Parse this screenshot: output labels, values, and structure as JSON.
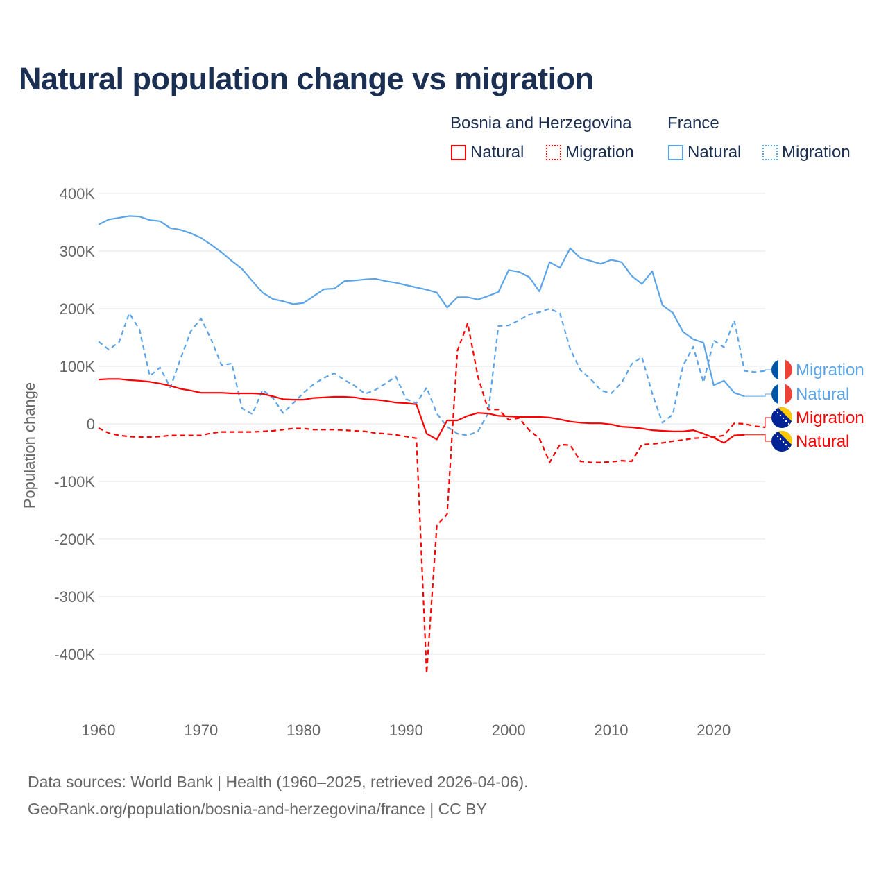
{
  "title": "Natural population change vs migration",
  "legend": {
    "groups": [
      {
        "name": "Bosnia and Herzegovina",
        "items": [
          "Natural",
          "Migration"
        ],
        "color": "#ff0000"
      },
      {
        "name": "France",
        "items": [
          "Natural",
          "Migration"
        ],
        "color": "#5ca4e8"
      }
    ]
  },
  "footer": {
    "line1": "Data sources: World Bank | Health (1960–2025, retrieved 2026-04-06).",
    "line2": "GeoRank.org/population/bosnia-and-herzegovina/france | CC BY"
  },
  "chart_data": {
    "type": "line",
    "title": "Natural population change vs migration",
    "xlabel": "",
    "ylabel": "Population change",
    "xlim": [
      1960,
      2025
    ],
    "ylim": [
      -450000,
      400000
    ],
    "x_ticks": [
      "1960",
      "1970",
      "1980",
      "1990",
      "2000",
      "2010",
      "2020"
    ],
    "y_ticks": [
      {
        "v": 400000,
        "label": "400K"
      },
      {
        "v": 300000,
        "label": "300K"
      },
      {
        "v": 200000,
        "label": "200K"
      },
      {
        "v": 100000,
        "label": "100K"
      },
      {
        "v": 0,
        "label": "0"
      },
      {
        "v": -100000,
        "label": "-100K"
      },
      {
        "v": -200000,
        "label": "-200K"
      },
      {
        "v": -300000,
        "label": "-300K"
      },
      {
        "v": -400000,
        "label": "-400K"
      }
    ],
    "grid": true,
    "start_year": 1960,
    "series": [
      {
        "name": "France Migration",
        "end_label": "Migration",
        "color": "#5ca4e8",
        "dash": true,
        "flag": "france",
        "values_k": [
          143,
          129,
          142,
          192,
          164,
          83,
          98,
          63,
          113,
          161,
          183,
          146,
          102,
          105,
          27,
          17,
          59,
          45,
          19,
          36,
          54,
          69,
          80,
          88,
          76,
          66,
          52,
          59,
          70,
          82,
          43,
          36,
          63,
          18,
          -5,
          -17,
          -20,
          -13,
          18,
          170,
          171,
          180,
          190,
          194,
          200,
          192,
          130,
          93,
          78,
          58,
          53,
          71,
          104,
          116,
          53,
          2,
          16,
          101,
          134,
          72,
          145,
          133,
          180,
          92,
          90,
          92
        ]
      },
      {
        "name": "France Natural",
        "end_label": "Natural",
        "color": "#5ca4e8",
        "dash": false,
        "flag": "france",
        "values_k": [
          346,
          355,
          358,
          361,
          360,
          354,
          352,
          340,
          337,
          331,
          323,
          311,
          298,
          283,
          269,
          248,
          228,
          217,
          213,
          208,
          210,
          222,
          234,
          235,
          248,
          249,
          251,
          252,
          248,
          245,
          241,
          237,
          233,
          228,
          202,
          220,
          220,
          216,
          222,
          229,
          267,
          264,
          255,
          230,
          281,
          271,
          305,
          288,
          283,
          278,
          285,
          281,
          257,
          243,
          265,
          206,
          193,
          160,
          147,
          141,
          67,
          75,
          54,
          48
        ]
      },
      {
        "name": "Bosnia and Herzegovina Migration",
        "end_label": "Migration",
        "color": "#ff0000",
        "dash": true,
        "flag": "bosnia",
        "values_k": [
          -7,
          -16,
          -20,
          -22,
          -23,
          -23,
          -22,
          -20,
          -20,
          -20,
          -20,
          -16,
          -14,
          -14,
          -14,
          -14,
          -13,
          -12,
          -10,
          -8,
          -8,
          -10,
          -10,
          -10,
          -11,
          -12,
          -13,
          -16,
          -17,
          -19,
          -22,
          -25,
          -433,
          -176,
          -157,
          127,
          175,
          82,
          25,
          25,
          7,
          10,
          -11,
          -25,
          -67,
          -36,
          -37,
          -65,
          -67,
          -67,
          -66,
          -64,
          -65,
          -36,
          -35,
          -33,
          -30,
          -28,
          -25,
          -24,
          -23,
          -20,
          1,
          0,
          -4,
          -6
        ]
      },
      {
        "name": "Bosnia and Herzegovina Natural",
        "end_label": "Natural",
        "color": "#ff0000",
        "dash": false,
        "flag": "bosnia",
        "values_k": [
          77,
          78,
          78,
          76,
          75,
          73,
          70,
          66,
          61,
          58,
          54,
          54,
          54,
          53,
          53,
          53,
          52,
          48,
          43,
          42,
          42,
          45,
          46,
          47,
          47,
          46,
          43,
          42,
          40,
          37,
          36,
          34,
          -17,
          -27,
          6,
          6,
          14,
          19,
          18,
          14,
          13,
          12,
          12,
          12,
          11,
          8,
          4,
          2,
          1,
          1,
          -1,
          -5,
          -6,
          -8,
          -11,
          -12,
          -13,
          -13,
          -11,
          -17,
          -24,
          -33,
          -20,
          -19
        ]
      }
    ]
  }
}
